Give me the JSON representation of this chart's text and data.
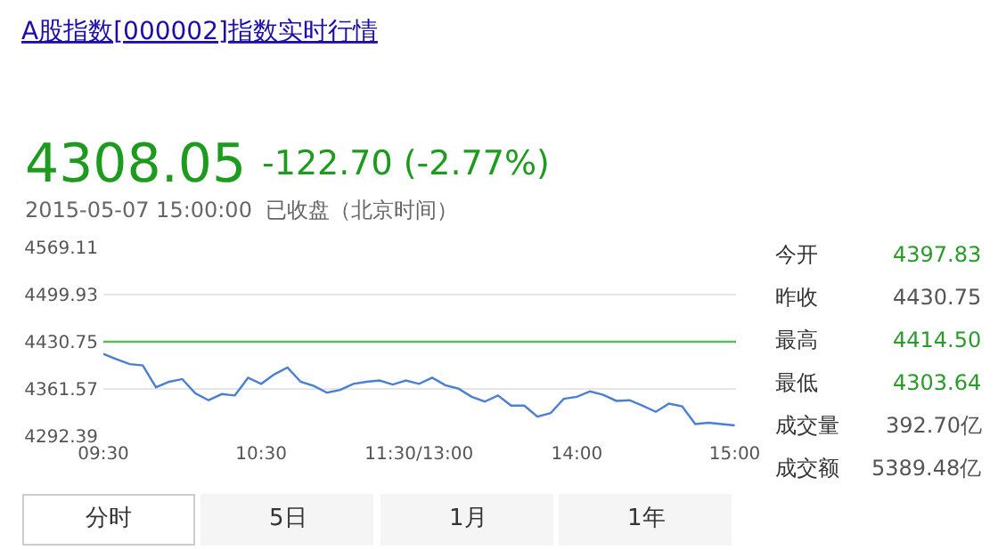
{
  "chart_data": {
    "type": "line",
    "title": "A股指数[000002]指数实时行情",
    "categories": [
      "09:30",
      null,
      null,
      null,
      null,
      null,
      null,
      null,
      null,
      null,
      null,
      null,
      "10:30",
      null,
      null,
      null,
      null,
      null,
      null,
      null,
      null,
      null,
      null,
      null,
      "11:30/13:00",
      null,
      null,
      null,
      null,
      null,
      null,
      null,
      null,
      null,
      null,
      null,
      "14:00",
      null,
      null,
      null,
      null,
      null,
      null,
      null,
      null,
      null,
      null,
      null,
      "15:00"
    ],
    "series": [
      {
        "color": "#4a7fd4",
        "values": [
          4413,
          4405,
          4398,
          4396,
          4364,
          4372,
          4376,
          4355,
          4345,
          4354,
          4352,
          4378,
          4369,
          4383,
          4393,
          4372,
          4366,
          4356,
          4360,
          4369,
          4372,
          4374,
          4368,
          4374,
          4369,
          4378,
          4367,
          4362,
          4350,
          4343,
          4352,
          4337,
          4337,
          4321,
          4326,
          4347,
          4350,
          4358,
          4353,
          4344,
          4345,
          4337,
          4328,
          4340,
          4336,
          4310,
          4312,
          4310,
          4308
        ]
      }
    ],
    "ylim": [
      4292.39,
      4569.11
    ],
    "yticks": [
      4292.39,
      4361.57,
      4430.75,
      4499.93,
      4569.11
    ],
    "ref_lines": [
      {
        "axis": "y",
        "value": 4430.75,
        "color": "#5cb85c"
      }
    ],
    "grid": "y",
    "line_style": "solid",
    "annotations": [
      "4308.05",
      "-122.70 (-2.77%)",
      "2015-05-07 15:00:00  已收盘（北京时间）",
      "今开",
      "4397.83",
      "昨收",
      "4430.75",
      "最高",
      "4414.50",
      "最低",
      "4303.64",
      "成交量",
      "392.70亿",
      "成交额",
      "5389.48亿",
      "分时",
      "5日",
      "1月",
      "1年"
    ]
  }
}
